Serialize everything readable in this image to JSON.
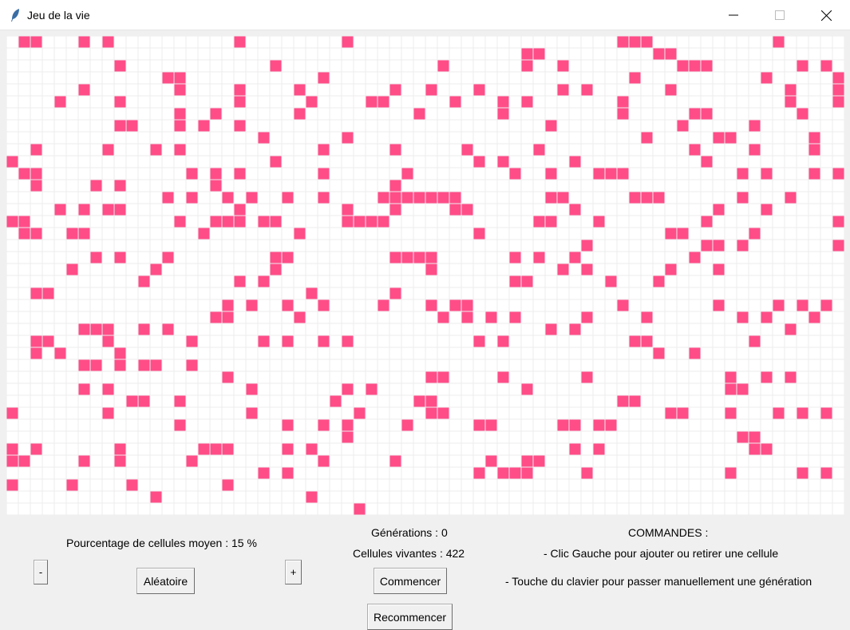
{
  "window": {
    "title": "Jeu de la vie"
  },
  "grid": {
    "cols": 70,
    "rows": 40,
    "cell_color": "#ff4d88",
    "line_color": "#ececec",
    "cells": "0110001010000000000100000000100000000000000000000001110000000000100000000000000000000000000000000000000000000000011000000000110000000000000000000000010000000000001000000000000010000001001000000000111000000010100000000000000110000000000010000000000000000000000000100000000001000001000000100000001000010000100000001001000100000010100000010000000001000100001000010000000001000001000011000001000101000000010000000000000100010000000000000010010000001000000000100000010000000001000001100000001000000000000110001010010000000000000000000000000100000000001000001000000000000000000000000000010000001000000000000000000000000100000110000001000010000010001010000000000010000010000010000010000000000001000010000100100000000000000000000010000000000000000101000001000000000010000000000001100000000000010101000000100000010000000010010001110000000001010001010010000101000000010000000000000010000000000000000000000000000000000000000000000000010100101001001000011111110000000110000011100000010001000000001010110000000001000000001000100001100000000100000000000100010000001100000000000010011101100000111100000000000011000100000000100000000001011001100000000010000000100000000000000100000000000000011000001000000000000000000000000000000000000000000000000000000010000000001101000000010000000101000100000000110000000011110000001010010000000001000000000000000001000000100000000010000000000001000000000010100000010001000000000000000000000100000001010000000000000000000011000000100010000000000000000011000000000000000000000100000010000000000000000000000000000000000000000000000000000000101001001000010001011000000000000100000001000010101000000000000000000110000010000000000010101010000010000100000001010001000000001110010100000000000000000000000000000001010000000000000000010000001100001000000100000101001010000000000101000000000011000000001000000000101000010000000000000000000000000000000000000000000010010000000000000000001101011001000000000000000000000000000000000000000000000000000000000000000000000000100000000000000001100001000000100000000000100101000000000010100000000000100000001010000000000001000000000000000011000000000000000000110010000000000001000000110000000000000001100000000000000000100000001000000000001000000001000001100000000000000000011000100010101000000000000000100000000100101000010000011000001101100000000000000000000000000000000000000000000000100000000000000000000000000000000110000000101000000100000011100001010000000000000000000001010000000000001100000011000010010000010000000000100000100000001001100000000000000000000000000000000000000000000001010000000000000001011100001000000000001000001010100001000010000000100000000000000000000000000000000000000000000000000000000000000010000000000001000000000000000000000000000000000000000000000000000000000000000000000000010000000000000000000000000000000000000000000000000000000000000000000000000000000000000000000000000000000000000000000000000000000000000000000000000000000000000000000000000000000000000000000000000000000000000000000000000000000000000000000000000000000000000000000000000000000000"
  },
  "controls": {
    "percentage_label": "Pourcentage de cellules moyen : 15 %",
    "minus_label": "-",
    "random_label": "Aléatoire",
    "plus_label": "+",
    "generations_label": "Générations : 0",
    "alive_label": "Cellules vivantes : 422",
    "start_label": "Commencer",
    "restart_label": "Recommencer"
  },
  "commands": {
    "title": "COMMANDES :",
    "line1": "- Clic Gauche pour ajouter ou retirer une cellule",
    "line2": "- Touche du clavier pour passer manuellement une génération"
  }
}
